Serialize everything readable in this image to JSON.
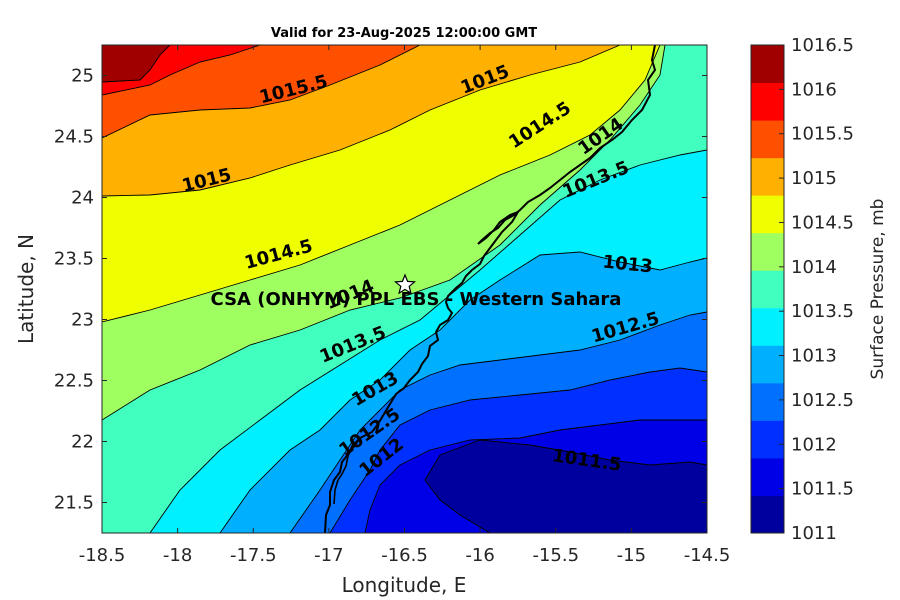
{
  "title": "Valid for 23-Aug-2025 12:00:00 GMT",
  "site_label": "CSA (ONHYM) PPL EBS  - Western Sahara",
  "x_axis": {
    "label": "Longitude, E",
    "range": [
      -18.5,
      -14.5
    ],
    "ticks": [
      -18.5,
      -18,
      -17.5,
      -17,
      -16.5,
      -16,
      -15.5,
      -15,
      -14.5
    ],
    "tick_labels": [
      "-18.5",
      "-18",
      "-17.5",
      "-17",
      "-16.5",
      "-16",
      "-15.5",
      "-15",
      "-14.5"
    ]
  },
  "y_axis": {
    "label": "Latitude, N",
    "range": [
      21.25,
      25.25
    ],
    "ticks": [
      21.5,
      22,
      22.5,
      23,
      23.5,
      24,
      24.5,
      25
    ],
    "tick_labels": [
      "21.5",
      "22",
      "22.5",
      "23",
      "23.5",
      "24",
      "24.5",
      "25"
    ]
  },
  "colorbar": {
    "label": "Surface Pressure, mb",
    "levels": [
      1011,
      1011.5,
      1012,
      1012.5,
      1013,
      1013.5,
      1014,
      1014.5,
      1015,
      1015.5,
      1016,
      1016.5
    ],
    "tick_labels": [
      "1011",
      "1011.5",
      "1012",
      "1012.5",
      "1013",
      "1013.5",
      "1014",
      "1014.5",
      "1015",
      "1015.5",
      "1016",
      "1016.5"
    ],
    "colors": [
      "#00009f",
      "#0000e6",
      "#0030ff",
      "#0070ff",
      "#00b0ff",
      "#00f0ff",
      "#40ffbf",
      "#9fff60",
      "#f0ff00",
      "#ffb000",
      "#ff5000",
      "#ff0000",
      "#a00000"
    ]
  },
  "chart_data": {
    "type": "heatmap",
    "title": "Valid for 23-Aug-2025 12:00:00 GMT",
    "xlabel": "Longitude, E",
    "ylabel": "Latitude, N",
    "xlim": [
      -18.5,
      -14.5
    ],
    "ylim": [
      21.25,
      25.25
    ],
    "zlabel": "Surface Pressure, mb",
    "zlim": [
      1011,
      1016.5
    ],
    "contour_interval": 0.5,
    "grid": false,
    "colorbar": "right",
    "contour_labels": [
      {
        "text": "1015.5",
        "lon": -17.8,
        "lat": 24.85
      },
      {
        "text": "1015",
        "lon": -16.0,
        "lat": 24.95
      },
      {
        "text": "1014.5",
        "lon": -15.65,
        "lat": 24.55
      },
      {
        "text": "1014",
        "lon": -15.1,
        "lat": 24.35
      },
      {
        "text": "1015",
        "lon": -18.3,
        "lat": 24.15
      },
      {
        "text": "1013.5",
        "lon": -14.95,
        "lat": 24.05
      },
      {
        "text": "1014.5",
        "lon": -17.6,
        "lat": 23.55
      },
      {
        "text": "1014",
        "lon": -16.85,
        "lat": 23.2
      },
      {
        "text": "1013",
        "lon": -15.0,
        "lat": 23.45
      },
      {
        "text": "1013.5",
        "lon": -17.1,
        "lat": 22.8
      },
      {
        "text": "1012.5",
        "lon": -14.9,
        "lat": 22.95
      },
      {
        "text": "1013",
        "lon": -16.95,
        "lat": 22.45
      },
      {
        "text": "1012.5",
        "lon": -17.0,
        "lat": 22.05
      },
      {
        "text": "1012",
        "lon": -16.85,
        "lat": 21.85
      },
      {
        "text": "1011.5",
        "lon": -15.5,
        "lat": 21.95
      }
    ],
    "site": {
      "name": "CSA (ONHYM) PPL EBS  - Western Sahara",
      "lon": -16.5,
      "lat": 23.3
    }
  }
}
